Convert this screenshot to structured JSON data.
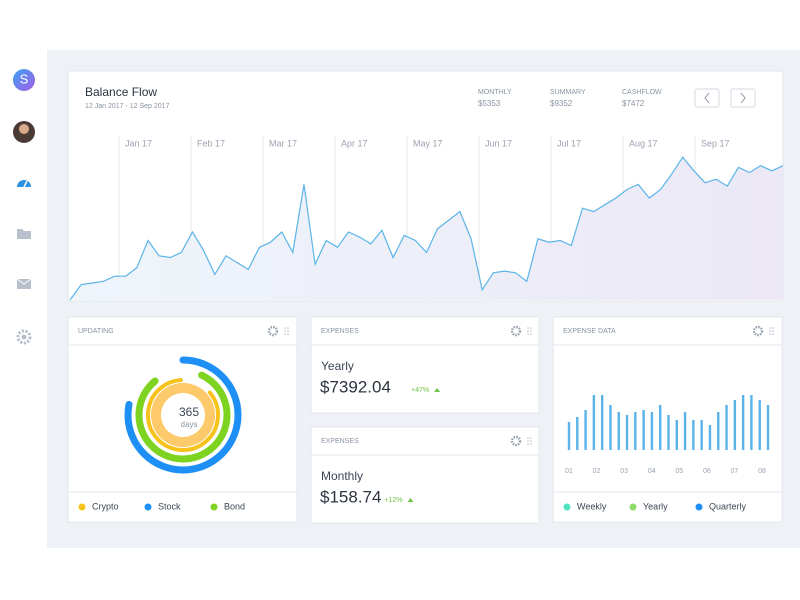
{
  "sidebar": {
    "logo": "S"
  },
  "balance": {
    "title": "Balance Flow",
    "subtitle": "12 Jan 2017 - 12 Sep 2017",
    "stats": [
      {
        "label": "MONTHLY",
        "value": "$5353"
      },
      {
        "label": "SUMMARY",
        "value": "$9352"
      },
      {
        "label": "CASHFLOW",
        "value": "$7472"
      }
    ],
    "months": [
      "Jan 17",
      "Feb 17",
      "Mar 17",
      "Apr 17",
      "May 17",
      "Jun 17",
      "Jul 17",
      "Aug 17",
      "Sep 17"
    ],
    "color": "#5ab4e8",
    "values": [
      0,
      9,
      10,
      11,
      14,
      14,
      19,
      35,
      26,
      25,
      28,
      40,
      29,
      15,
      26,
      22,
      18,
      31,
      34,
      40,
      28,
      68,
      21,
      35,
      31,
      40,
      37,
      33,
      41,
      25,
      38,
      35,
      28,
      42,
      47,
      52,
      36,
      6,
      16,
      17,
      16,
      11,
      36,
      34,
      35,
      32,
      54,
      52,
      56,
      60,
      65,
      68,
      60,
      65,
      74,
      84,
      76,
      69,
      71,
      67,
      78,
      75,
      79,
      76,
      79
    ]
  },
  "updating": {
    "title": "UPDATING",
    "center_value": "365",
    "center_unit": "days",
    "rings": [
      {
        "color": "#1e8ff5",
        "value": 78
      },
      {
        "color": "#7ed321",
        "value": 82
      },
      {
        "color": "#f7c21b",
        "value": 85
      },
      {
        "color": "#fcc96b",
        "value": 100
      }
    ],
    "legend": [
      {
        "name": "Crypto",
        "color": "#f7c21b"
      },
      {
        "name": "Stock",
        "color": "#1e8ff5"
      },
      {
        "name": "Bond",
        "color": "#7ed321"
      }
    ]
  },
  "expenses": [
    {
      "title": "EXPENSES",
      "period": "Yearly",
      "amount": "$7392.04",
      "change": "+47%"
    },
    {
      "title": "EXPENSES",
      "period": "Monthly",
      "amount": "$158.74",
      "change": "+12%"
    }
  ],
  "expense_data": {
    "title": "EXPENSE DATA",
    "color": "#5ab4e8",
    "x_labels": [
      "01",
      "02",
      "03",
      "04",
      "05",
      "06",
      "07",
      "08"
    ],
    "values": [
      28,
      33,
      40,
      55,
      55,
      45,
      38,
      35,
      38,
      40,
      38,
      45,
      35,
      30,
      38,
      30,
      30,
      25,
      38,
      45,
      50,
      55,
      55,
      50,
      45
    ],
    "legend": [
      {
        "name": "Weekly",
        "color": "#50e3c2"
      },
      {
        "name": "Yearly",
        "color": "#8ddc6a"
      },
      {
        "name": "Quarterly",
        "color": "#1e8ff5"
      }
    ]
  }
}
